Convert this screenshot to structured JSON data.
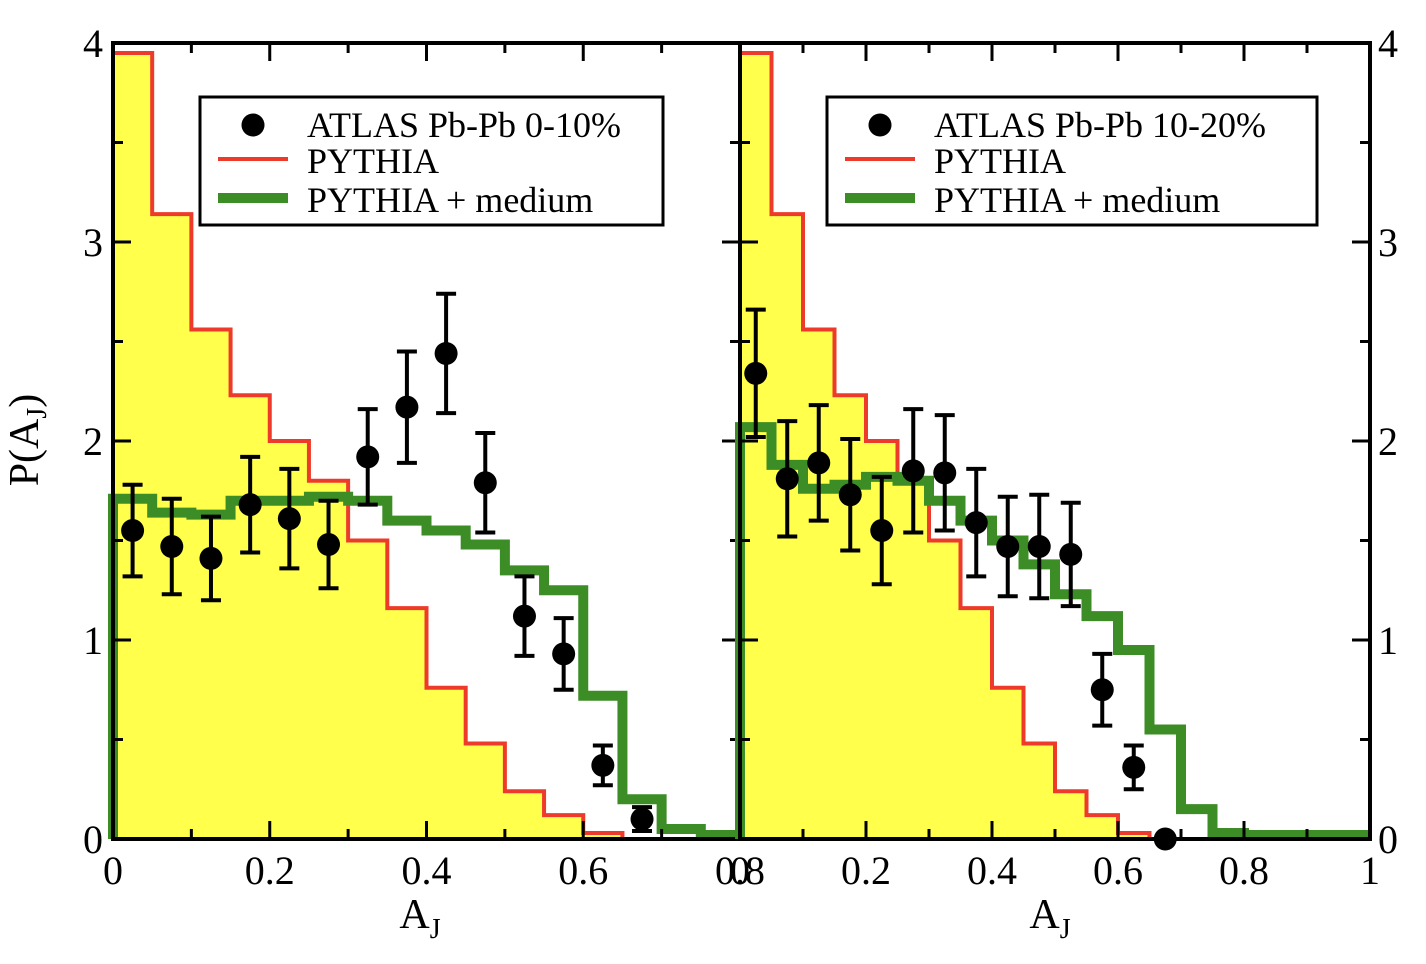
{
  "figure": {
    "ylabel": "P(A",
    "ylabel_sub": "J",
    "ylabel_close": ")",
    "xlabel_main": "A",
    "xlabel_sub": "J"
  },
  "colors": {
    "fill": "#ffff4c",
    "pythia": "#ee3a2a",
    "medium": "#3c8d25",
    "points": "#000000"
  },
  "chart_data": [
    {
      "type": "histogram-with-points",
      "panel": "left",
      "centrality": "0-10%",
      "xlim": [
        0,
        0.8
      ],
      "ylim": [
        0,
        4
      ],
      "xticks": [
        "0",
        "0.2",
        "0.4",
        "0.6",
        "0.8"
      ],
      "yticks": [
        "0",
        "1",
        "2",
        "3",
        "4"
      ],
      "xlabel": "A_J",
      "ylabel": "P(A_J)",
      "legend": {
        "position": "top-right",
        "data": "ATLAS Pb-Pb 0-10%",
        "pythia": "PYTHIA",
        "medium": "PYTHIA + medium"
      },
      "bin_edges": [
        0,
        0.05,
        0.1,
        0.15,
        0.2,
        0.25,
        0.3,
        0.35,
        0.4,
        0.45,
        0.5,
        0.55,
        0.6,
        0.65,
        0.7,
        0.75,
        0.8
      ],
      "series": [
        {
          "name": "PYTHIA",
          "values": [
            3.95,
            3.14,
            2.56,
            2.23,
            2.0,
            1.8,
            1.5,
            1.16,
            0.76,
            0.48,
            0.24,
            0.12,
            0.03,
            0.0,
            0.0,
            0.0
          ]
        },
        {
          "name": "PYTHIA + medium",
          "values": [
            1.71,
            1.64,
            1.63,
            1.7,
            1.7,
            1.72,
            1.7,
            1.6,
            1.55,
            1.48,
            1.35,
            1.25,
            0.72,
            0.2,
            0.05,
            0.02
          ]
        }
      ],
      "points": {
        "name": "ATLAS Pb-Pb 0-10%",
        "x": [
          0.025,
          0.075,
          0.125,
          0.175,
          0.225,
          0.275,
          0.325,
          0.375,
          0.425,
          0.475,
          0.525,
          0.575,
          0.625,
          0.675
        ],
        "y": [
          1.55,
          1.47,
          1.41,
          1.68,
          1.61,
          1.48,
          1.92,
          2.17,
          2.44,
          1.79,
          1.12,
          0.93,
          0.37,
          0.1
        ],
        "err": [
          0.23,
          0.24,
          0.21,
          0.24,
          0.25,
          0.22,
          0.24,
          0.28,
          0.3,
          0.25,
          0.2,
          0.18,
          0.1,
          0.06
        ]
      }
    },
    {
      "type": "histogram-with-points",
      "panel": "right",
      "centrality": "10-20%",
      "xlim": [
        0,
        1.0
      ],
      "ylim": [
        0,
        4
      ],
      "xticks": [
        "0",
        "0.2",
        "0.4",
        "0.6",
        "0.8",
        "1"
      ],
      "yticks": [
        "0",
        "1",
        "2",
        "3",
        "4"
      ],
      "xlabel": "A_J",
      "legend": {
        "position": "top-right",
        "data": "ATLAS Pb-Pb 10-20%",
        "pythia": "PYTHIA",
        "medium": "PYTHIA + medium"
      },
      "bin_edges": [
        0,
        0.05,
        0.1,
        0.15,
        0.2,
        0.25,
        0.3,
        0.35,
        0.4,
        0.45,
        0.5,
        0.55,
        0.6,
        0.65,
        0.7,
        0.75,
        0.8,
        0.85,
        0.9,
        0.95,
        1.0
      ],
      "series": [
        {
          "name": "PYTHIA",
          "values": [
            3.95,
            3.14,
            2.56,
            2.23,
            2.0,
            1.8,
            1.5,
            1.16,
            0.76,
            0.48,
            0.24,
            0.12,
            0.03,
            0.0,
            0.0,
            0.0,
            0.0,
            0.0,
            0.0,
            0.0
          ]
        },
        {
          "name": "PYTHIA + medium",
          "values": [
            2.07,
            1.88,
            1.76,
            1.78,
            1.82,
            1.8,
            1.7,
            1.6,
            1.5,
            1.38,
            1.23,
            1.12,
            0.95,
            0.55,
            0.15,
            0.03,
            0.02,
            0.02,
            0.02,
            0.02
          ]
        }
      ],
      "points": {
        "name": "ATLAS Pb-Pb 10-20%",
        "x": [
          0.025,
          0.075,
          0.125,
          0.175,
          0.225,
          0.275,
          0.325,
          0.375,
          0.425,
          0.475,
          0.525,
          0.575,
          0.625,
          0.675
        ],
        "y": [
          2.34,
          1.81,
          1.89,
          1.73,
          1.55,
          1.85,
          1.84,
          1.59,
          1.47,
          1.47,
          1.43,
          0.75,
          0.36,
          0.0
        ],
        "err": [
          0.32,
          0.29,
          0.29,
          0.28,
          0.27,
          0.31,
          0.29,
          0.27,
          0.25,
          0.26,
          0.26,
          0.18,
          0.11,
          0.0
        ]
      }
    }
  ]
}
